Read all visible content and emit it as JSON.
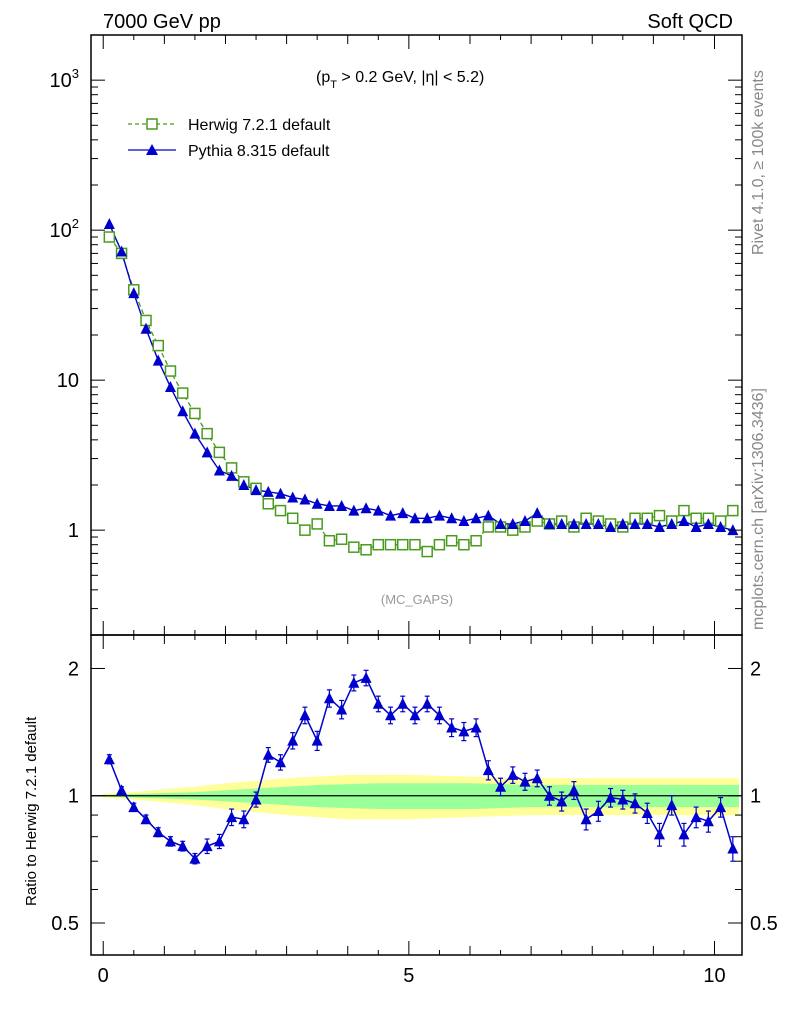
{
  "header": {
    "left": "7000 GeV pp",
    "right": "Soft QCD"
  },
  "side_text": {
    "rivet": "Rivet 4.1.0, ≥ 100k events",
    "source": "mcplots.cern.ch [arXiv:1306.3436]"
  },
  "annotation": {
    "cut_part1": "(p",
    "cut_sub": "T",
    "cut_part2": " > 0.2 GeV, |η| < 5.2)",
    "analysis": "(MC_GAPS)"
  },
  "colors": {
    "herwig": "#4a9a1e",
    "pythia": "#0000cc",
    "band_inner": "#99ff99",
    "band_outer": "#ffff99"
  },
  "chart_data": [
    {
      "type": "scatter",
      "panel": "main",
      "yscale": "log",
      "xlim": [
        -0.2,
        10.45
      ],
      "ylim": [
        0.2,
        2000
      ],
      "yticks": [
        {
          "value": 1000,
          "base": "10",
          "exp": "3"
        },
        {
          "value": 100,
          "base": "10",
          "exp": "2"
        },
        {
          "value": 10,
          "base": "10",
          "exp": ""
        },
        {
          "value": 1,
          "base": "1",
          "exp": ""
        }
      ],
      "x": [
        0.1,
        0.3,
        0.5,
        0.7,
        0.9,
        1.1,
        1.3,
        1.5,
        1.7,
        1.9,
        2.1,
        2.3,
        2.5,
        2.7,
        2.9,
        3.1,
        3.3,
        3.5,
        3.7,
        3.9,
        4.1,
        4.3,
        4.5,
        4.7,
        4.9,
        5.1,
        5.3,
        5.5,
        5.7,
        5.9,
        6.1,
        6.3,
        6.5,
        6.7,
        6.9,
        7.1,
        7.3,
        7.5,
        7.7,
        7.9,
        8.1,
        8.3,
        8.5,
        8.7,
        8.9,
        9.1,
        9.3,
        9.5,
        9.7,
        9.9,
        10.1,
        10.3
      ],
      "series": [
        {
          "name": "Herwig 7.2.1 default",
          "marker": "open-square",
          "linestyle": "dashed",
          "values": [
            90,
            70,
            40,
            25,
            17,
            11.5,
            8.2,
            6.0,
            4.4,
            3.3,
            2.6,
            2.1,
            1.9,
            1.5,
            1.35,
            1.2,
            1.0,
            1.1,
            0.85,
            0.87,
            0.77,
            0.74,
            0.8,
            0.8,
            0.8,
            0.8,
            0.72,
            0.8,
            0.85,
            0.8,
            0.85,
            1.05,
            1.05,
            1.0,
            1.05,
            1.15,
            1.1,
            1.15,
            1.05,
            1.2,
            1.15,
            1.1,
            1.05,
            1.2,
            1.2,
            1.25,
            1.15,
            1.35,
            1.2,
            1.2,
            1.15,
            1.35
          ]
        },
        {
          "name": "Pythia 8.315 default",
          "marker": "filled-triangle",
          "linestyle": "solid",
          "values": [
            110,
            72,
            38,
            22,
            13.5,
            9.0,
            6.2,
            4.4,
            3.3,
            2.5,
            2.3,
            2.0,
            1.85,
            1.8,
            1.75,
            1.65,
            1.6,
            1.5,
            1.45,
            1.45,
            1.35,
            1.4,
            1.35,
            1.25,
            1.3,
            1.2,
            1.2,
            1.25,
            1.2,
            1.15,
            1.2,
            1.25,
            1.1,
            1.1,
            1.15,
            1.3,
            1.1,
            1.1,
            1.1,
            1.1,
            1.1,
            1.05,
            1.1,
            1.1,
            1.1,
            1.05,
            1.1,
            1.15,
            1.05,
            1.1,
            1.05,
            1.0
          ]
        }
      ]
    },
    {
      "type": "line",
      "panel": "ratio",
      "ylabel": "Ratio to Herwig 7.2.1 default",
      "yscale": "log",
      "xlim": [
        -0.2,
        10.45
      ],
      "ylim": [
        0.42,
        2.4
      ],
      "xticks": [
        0,
        5,
        10
      ],
      "yticks": [
        0.5,
        1,
        2
      ],
      "ytick_labels": [
        "0.5",
        "1",
        "2"
      ],
      "x": [
        0.1,
        0.3,
        0.5,
        0.7,
        0.9,
        1.1,
        1.3,
        1.5,
        1.7,
        1.9,
        2.1,
        2.3,
        2.5,
        2.7,
        2.9,
        3.1,
        3.3,
        3.5,
        3.7,
        3.9,
        4.1,
        4.3,
        4.5,
        4.7,
        4.9,
        5.1,
        5.3,
        5.5,
        5.7,
        5.9,
        6.1,
        6.3,
        6.5,
        6.7,
        6.9,
        7.1,
        7.3,
        7.5,
        7.7,
        7.9,
        8.1,
        8.3,
        8.5,
        8.7,
        8.9,
        9.1,
        9.3,
        9.5,
        9.7,
        9.9,
        10.1,
        10.3
      ],
      "series": [
        {
          "name": "Pythia 8.315 / Herwig 7.2.1",
          "values": [
            1.22,
            1.03,
            0.94,
            0.88,
            0.82,
            0.78,
            0.76,
            0.71,
            0.76,
            0.78,
            0.89,
            0.88,
            0.98,
            1.25,
            1.2,
            1.35,
            1.55,
            1.35,
            1.7,
            1.6,
            1.85,
            1.9,
            1.65,
            1.55,
            1.65,
            1.55,
            1.65,
            1.55,
            1.45,
            1.42,
            1.45,
            1.15,
            1.05,
            1.12,
            1.08,
            1.1,
            1.0,
            0.97,
            1.03,
            0.88,
            0.92,
            0.99,
            0.98,
            0.96,
            0.91,
            0.81,
            0.95,
            0.81,
            0.89,
            0.87,
            0.94,
            0.75
          ],
          "errors": [
            0.03,
            0.02,
            0.02,
            0.02,
            0.02,
            0.02,
            0.02,
            0.02,
            0.03,
            0.03,
            0.04,
            0.04,
            0.04,
            0.05,
            0.05,
            0.06,
            0.07,
            0.07,
            0.08,
            0.08,
            0.08,
            0.08,
            0.07,
            0.07,
            0.07,
            0.07,
            0.07,
            0.07,
            0.07,
            0.07,
            0.07,
            0.06,
            0.05,
            0.05,
            0.05,
            0.05,
            0.05,
            0.05,
            0.05,
            0.05,
            0.05,
            0.05,
            0.05,
            0.05,
            0.05,
            0.05,
            0.05,
            0.05,
            0.05,
            0.05,
            0.05,
            0.05
          ]
        }
      ],
      "band": {
        "x": [
          0.0,
          0.5,
          1.0,
          1.5,
          2.0,
          2.5,
          3.0,
          3.5,
          4.0,
          4.5,
          5.0,
          5.5,
          6.0,
          6.5,
          7.0,
          7.5,
          8.0,
          8.5,
          9.0,
          9.5,
          10.0,
          10.4
        ],
        "inner": [
          0.005,
          0.01,
          0.015,
          0.02,
          0.03,
          0.04,
          0.05,
          0.06,
          0.065,
          0.07,
          0.07,
          0.07,
          0.07,
          0.065,
          0.06,
          0.06,
          0.06,
          0.06,
          0.06,
          0.06,
          0.06,
          0.06
        ],
        "outer": [
          0.01,
          0.02,
          0.035,
          0.05,
          0.07,
          0.085,
          0.1,
          0.11,
          0.12,
          0.12,
          0.12,
          0.115,
          0.11,
          0.105,
          0.1,
          0.1,
          0.1,
          0.1,
          0.1,
          0.1,
          0.1,
          0.1
        ]
      }
    }
  ]
}
